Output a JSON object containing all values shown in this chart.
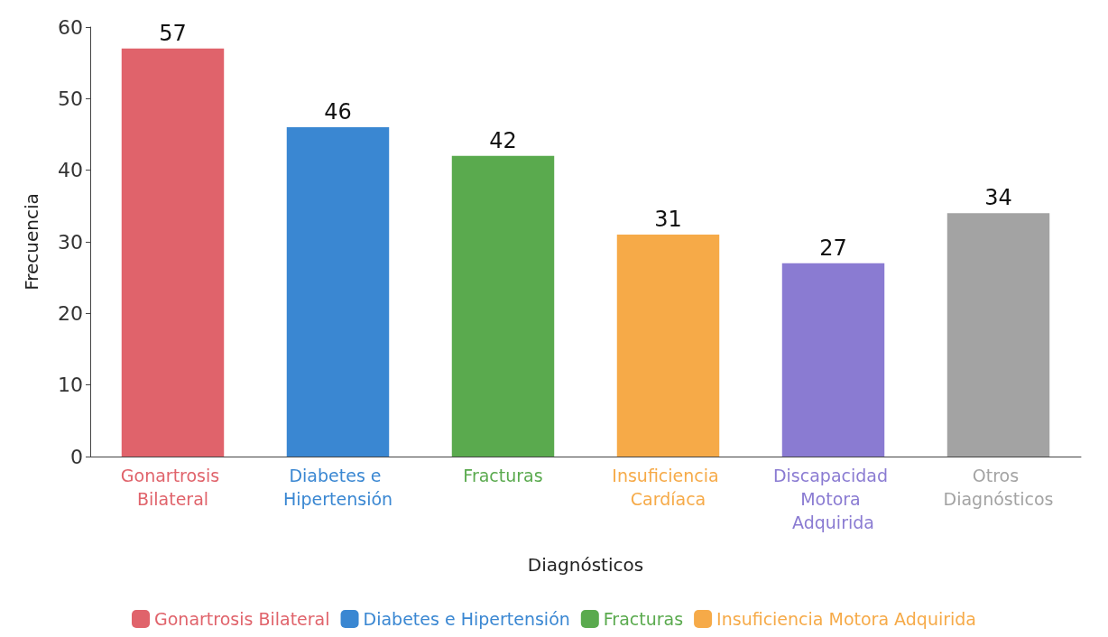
{
  "chart_data": {
    "type": "bar",
    "xlabel": "Diagnósticos",
    "ylabel": "Frecuencia",
    "categories": [
      "Gonartrosis Bilateral",
      "Diabetes e Hipertensión",
      "Fracturas",
      "Insuficiencia Cardíaca",
      "Discapacidad Motora Adquirida",
      "Otros Diagnósticos"
    ],
    "series": [
      {
        "name": "Gonartrosis Bilateral",
        "color": "#e0636b",
        "values": [
          57,
          null,
          null,
          null,
          null,
          null
        ]
      },
      {
        "name": "Diabetes e Hipertensión",
        "color": "#3a87d2",
        "values": [
          null,
          46,
          null,
          null,
          null,
          null
        ]
      },
      {
        "name": "Fracturas",
        "color": "#5aaa4e",
        "values": [
          null,
          null,
          42,
          null,
          null,
          null
        ]
      },
      {
        "name": "Insuficiencia Motora Adquirida",
        "color": "#f6aa48",
        "values": [
          null,
          null,
          null,
          31,
          null,
          null
        ]
      },
      {
        "color": "#8a7bd2",
        "values": [
          null,
          null,
          null,
          null,
          27,
          null
        ]
      },
      {
        "color": "#a3a3a3",
        "values": [
          null,
          null,
          null,
          null,
          null,
          34
        ]
      }
    ],
    "stacked": true,
    "ylim": [
      0,
      60
    ],
    "yticks": [
      0,
      10,
      20,
      30,
      40,
      50,
      60
    ],
    "grid": false,
    "legend": "bottom",
    "data_labels": true
  }
}
